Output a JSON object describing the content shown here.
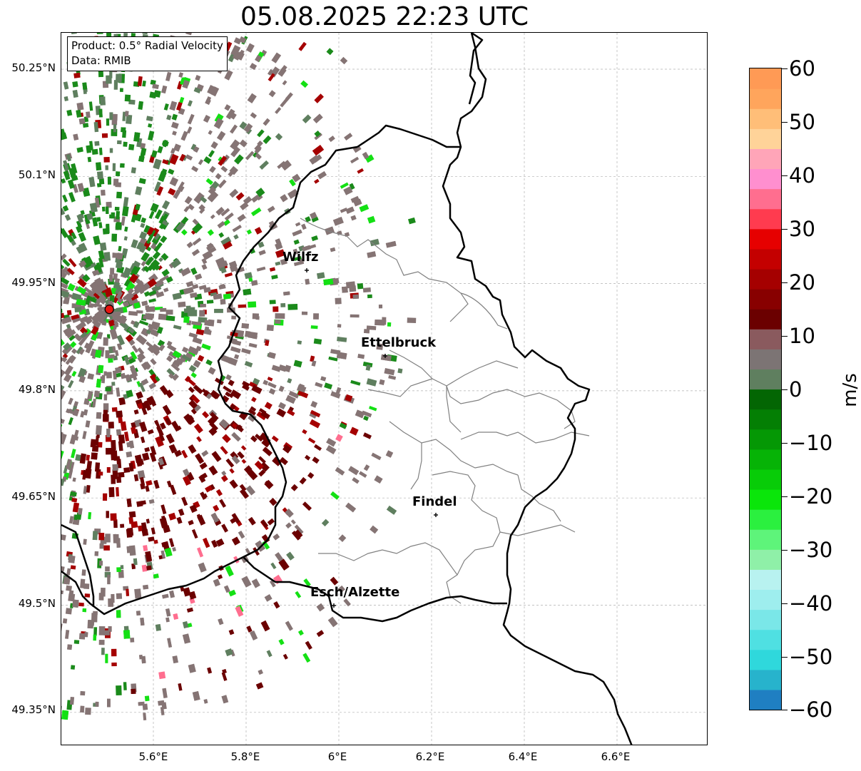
{
  "title": "05.08.2025 22:23 UTC",
  "info": {
    "product": "Product: 0.5° Radial Velocity",
    "data_source": "Data: RMIB"
  },
  "axes": {
    "y_ticks": [
      "50.25°N",
      "50.1°N",
      "49.95°N",
      "49.8°N",
      "49.65°N",
      "49.5°N",
      "49.35°N"
    ],
    "x_ticks": [
      "5.6°E",
      "5.8°E",
      "6°E",
      "6.2°E",
      "6.4°E",
      "6.6°E"
    ]
  },
  "cities": [
    {
      "name": "Wilfz"
    },
    {
      "name": "Ettelbruck"
    },
    {
      "name": "Findel"
    },
    {
      "name": "Esch/Alzette"
    }
  ],
  "colorbar": {
    "label": "m/s",
    "ticks": [
      "60",
      "50",
      "40",
      "30",
      "20",
      "10",
      "0",
      "−10",
      "−20",
      "−30",
      "−40",
      "−50",
      "−60"
    ],
    "min": -60,
    "max": 60
  },
  "radar_site": {
    "lon": 5.505,
    "lat": 49.914,
    "color": "#e8140f"
  },
  "colors": {
    "receding_dark": "#6b0000",
    "receding": "#a50000",
    "neutral": "#857474",
    "approaching_gray": "#5f7f5f",
    "approaching": "#1a8a1a",
    "approaching_bright": "#14e014",
    "pink": "#ff6e8f"
  }
}
